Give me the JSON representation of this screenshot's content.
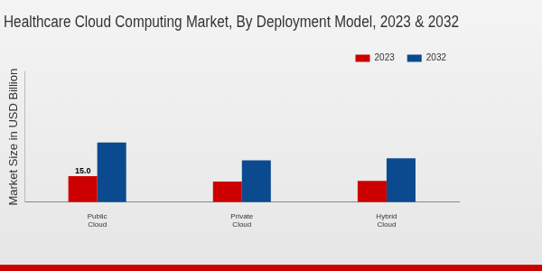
{
  "chart_data": {
    "type": "bar",
    "title": "Healthcare Cloud Computing Market, By Deployment Model, 2023 & 2032",
    "y_label": "Market Size in USD Billion",
    "categories": [
      "Public Cloud",
      "Private Cloud",
      "Hybrid Cloud"
    ],
    "series": [
      {
        "name": "2023",
        "color": "#cc0000",
        "values": [
          15.0,
          11.8,
          12.3
        ],
        "value_labels": [
          "15.0",
          null,
          null
        ]
      },
      {
        "name": "2032",
        "color": "#0b4a8f",
        "values": [
          34.3,
          24.1,
          25.2
        ]
      }
    ],
    "ylim": [
      0,
      75
    ],
    "grid": false,
    "legend": "top",
    "data_labels": true,
    "tick_labels": "x"
  }
}
